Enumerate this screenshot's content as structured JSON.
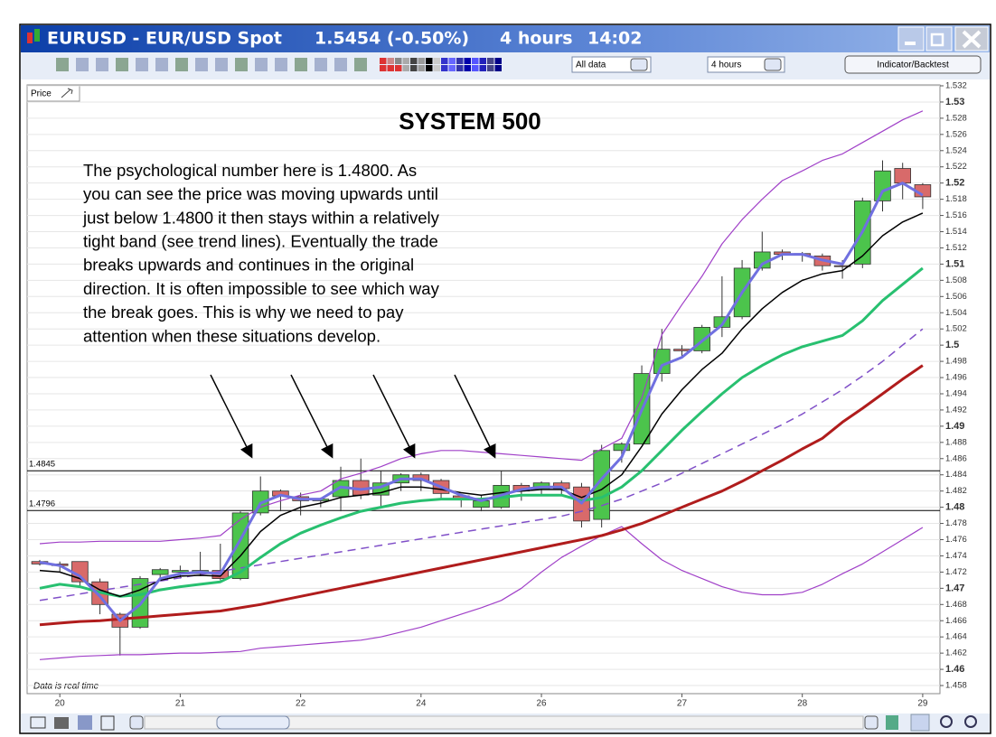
{
  "window": {
    "symbol": "EURUSD - EUR/USD Spot",
    "quote": "1.5454 (-0.50%)",
    "interval": "4 hours",
    "time": "14:02",
    "range_select": "All data",
    "interval_select": "4 hours",
    "button": "Indicator/Backtest",
    "panel_label": "Price",
    "status": "Data is real time"
  },
  "chart_data": {
    "type": "candlestick",
    "title": "SYSTEM 500",
    "annotation": [
      "The psychological number here is 1.4800. As",
      "you can see the price was moving upwards until",
      "just below 1.4800 it then stays within a relatively",
      "tight band (see trend lines). Eventually the trade",
      "breaks upwards and continues in the original",
      "direction. It is often impossible to see which way",
      "the break goes. This is why we need to pay",
      "attention when these situations develop."
    ],
    "up_color": "#4cc44c",
    "down_color": "#d86a6a",
    "open": [
      1.4733,
      1.473,
      1.4733,
      1.4708,
      1.4668,
      1.4652,
      1.4717,
      1.472,
      1.4718,
      1.4722,
      1.4712,
      1.4793,
      1.482,
      1.4813,
      1.4808,
      1.4813,
      1.4833,
      1.4815,
      1.483,
      1.484,
      1.4833,
      1.4814,
      1.48,
      1.48,
      1.4827,
      1.4822,
      1.483,
      1.4825,
      1.4785,
      1.487,
      1.4878,
      1.4965,
      1.4995,
      1.4993,
      1.5022,
      1.5035,
      1.5095,
      1.5115,
      1.5113,
      1.511,
      1.5098,
      1.51,
      1.5178,
      1.5218,
      1.5198
    ],
    "high": [
      1.4735,
      1.4733,
      1.4733,
      1.4712,
      1.467,
      1.4715,
      1.4725,
      1.4728,
      1.4745,
      1.4755,
      1.4795,
      1.4838,
      1.4822,
      1.4818,
      1.4812,
      1.485,
      1.486,
      1.4845,
      1.4842,
      1.4843,
      1.4835,
      1.4815,
      1.4815,
      1.4845,
      1.483,
      1.4832,
      1.4833,
      1.483,
      1.4877,
      1.488,
      1.4975,
      1.502,
      1.5,
      1.5025,
      1.5085,
      1.5105,
      1.514,
      1.5118,
      1.5115,
      1.5113,
      1.5105,
      1.5182,
      1.5228,
      1.5225,
      1.52
    ],
    "low": [
      1.4728,
      1.472,
      1.4703,
      1.4668,
      1.4617,
      1.465,
      1.4712,
      1.4712,
      1.4715,
      1.471,
      1.471,
      1.479,
      1.4795,
      1.479,
      1.48,
      1.4795,
      1.481,
      1.48,
      1.482,
      1.482,
      1.481,
      1.48,
      1.4795,
      1.4798,
      1.4808,
      1.4815,
      1.4815,
      1.4775,
      1.4775,
      1.4855,
      1.4878,
      1.4955,
      1.4985,
      1.499,
      1.501,
      1.5032,
      1.5092,
      1.5105,
      1.5103,
      1.5092,
      1.5082,
      1.5095,
      1.5165,
      1.518,
      1.5168
    ],
    "close": [
      1.473,
      1.4728,
      1.4708,
      1.468,
      1.4652,
      1.4712,
      1.4723,
      1.4722,
      1.4722,
      1.4712,
      1.4793,
      1.482,
      1.4814,
      1.4808,
      1.481,
      1.4833,
      1.4815,
      1.483,
      1.484,
      1.4833,
      1.4817,
      1.481,
      1.4808,
      1.4827,
      1.482,
      1.483,
      1.4823,
      1.4783,
      1.487,
      1.4878,
      1.4965,
      1.4995,
      1.4993,
      1.5022,
      1.5035,
      1.5095,
      1.5115,
      1.5112,
      1.5111,
      1.5098,
      1.5097,
      1.5178,
      1.5215,
      1.52,
      1.5183
    ],
    "series": [
      {
        "color": "#a040c8",
        "width": 1.2,
        "dash": false,
        "values": [
          1.4755,
          1.4757,
          1.4757,
          1.4758,
          1.4758,
          1.4758,
          1.4758,
          1.476,
          1.4762,
          1.4765,
          1.4785,
          1.48,
          1.4808,
          1.4815,
          1.482,
          1.4835,
          1.4842,
          1.485,
          1.486,
          1.4866,
          1.487,
          1.487,
          1.4868,
          1.4866,
          1.4864,
          1.4862,
          1.486,
          1.4858,
          1.4872,
          1.4885,
          1.4935,
          1.5013,
          1.505,
          1.5085,
          1.5125,
          1.5155,
          1.518,
          1.5203,
          1.5215,
          1.5228,
          1.5236,
          1.525,
          1.5264,
          1.5278,
          1.5289
        ]
      },
      {
        "color": "#a040c8",
        "width": 1.2,
        "dash": false,
        "values": [
          1.4612,
          1.4614,
          1.4616,
          1.4617,
          1.4618,
          1.4618,
          1.4619,
          1.462,
          1.462,
          1.4621,
          1.4622,
          1.4626,
          1.4628,
          1.463,
          1.4632,
          1.4634,
          1.4636,
          1.464,
          1.4646,
          1.4652,
          1.466,
          1.4668,
          1.4676,
          1.4685,
          1.47,
          1.472,
          1.4738,
          1.4752,
          1.4765,
          1.4776,
          1.4755,
          1.4735,
          1.4722,
          1.4712,
          1.4702,
          1.4695,
          1.4692,
          1.4692,
          1.4695,
          1.4705,
          1.4718,
          1.473,
          1.4745,
          1.476,
          1.4775
        ]
      },
      {
        "color": "#8050c8",
        "width": 1.5,
        "dash": true,
        "values": [
          1.4685,
          1.4689,
          1.4693,
          1.4697,
          1.4701,
          1.4705,
          1.4709,
          1.4713,
          1.4717,
          1.4721,
          1.4725,
          1.4729,
          1.4733,
          1.4737,
          1.4741,
          1.4745,
          1.4749,
          1.4753,
          1.4757,
          1.4761,
          1.4765,
          1.4769,
          1.4773,
          1.4777,
          1.4781,
          1.4785,
          1.4789,
          1.4795,
          1.4802,
          1.481,
          1.482,
          1.483,
          1.4842,
          1.4854,
          1.4866,
          1.4878,
          1.489,
          1.4902,
          1.4915,
          1.493,
          1.4945,
          1.4962,
          1.498,
          1.5,
          1.502
        ]
      },
      {
        "color": "#b01c1c",
        "width": 3,
        "dash": false,
        "values": [
          1.4655,
          1.4657,
          1.4659,
          1.466,
          1.4662,
          1.4664,
          1.4666,
          1.4668,
          1.467,
          1.4672,
          1.4676,
          1.468,
          1.4685,
          1.469,
          1.4695,
          1.47,
          1.4705,
          1.471,
          1.4715,
          1.472,
          1.4725,
          1.473,
          1.4735,
          1.474,
          1.4745,
          1.475,
          1.4755,
          1.476,
          1.4765,
          1.4772,
          1.478,
          1.479,
          1.48,
          1.481,
          1.482,
          1.4832,
          1.4845,
          1.4858,
          1.4872,
          1.4885,
          1.4905,
          1.4922,
          1.494,
          1.4958,
          1.4975
        ]
      },
      {
        "color": "#28c070",
        "width": 3,
        "dash": false,
        "values": [
          1.47,
          1.4705,
          1.4702,
          1.4695,
          1.469,
          1.4692,
          1.4698,
          1.4702,
          1.4705,
          1.4708,
          1.472,
          1.4738,
          1.4755,
          1.4768,
          1.4778,
          1.4787,
          1.4795,
          1.48,
          1.4805,
          1.4808,
          1.481,
          1.481,
          1.481,
          1.4812,
          1.4815,
          1.4815,
          1.4815,
          1.4808,
          1.4812,
          1.4825,
          1.4845,
          1.487,
          1.4895,
          1.4918,
          1.494,
          1.496,
          1.4975,
          1.4988,
          1.4998,
          1.5005,
          1.5012,
          1.503,
          1.5055,
          1.5075,
          1.5095
        ]
      },
      {
        "color": "#000000",
        "width": 1.5,
        "dash": false,
        "values": [
          1.4722,
          1.472,
          1.4712,
          1.4698,
          1.469,
          1.4698,
          1.471,
          1.4715,
          1.4716,
          1.4715,
          1.474,
          1.477,
          1.479,
          1.48,
          1.4805,
          1.4812,
          1.4815,
          1.4818,
          1.4825,
          1.4825,
          1.4822,
          1.4818,
          1.4815,
          1.4818,
          1.482,
          1.4822,
          1.4822,
          1.4812,
          1.4822,
          1.484,
          1.4875,
          1.4915,
          1.4945,
          1.497,
          1.499,
          1.502,
          1.5045,
          1.5065,
          1.508,
          1.5088,
          1.5092,
          1.511,
          1.5135,
          1.5152,
          1.5163
        ]
      },
      {
        "color": "#7070e0",
        "width": 3,
        "dash": false,
        "values": [
          1.4732,
          1.4728,
          1.4715,
          1.469,
          1.466,
          1.468,
          1.4712,
          1.4718,
          1.472,
          1.4718,
          1.476,
          1.4805,
          1.4815,
          1.481,
          1.481,
          1.4825,
          1.4822,
          1.4825,
          1.4835,
          1.4835,
          1.4825,
          1.4815,
          1.4808,
          1.4815,
          1.4822,
          1.4825,
          1.4825,
          1.4805,
          1.4835,
          1.4862,
          1.492,
          1.4975,
          1.4985,
          1.5005,
          1.5025,
          1.5065,
          1.51,
          1.5112,
          1.5112,
          1.5105,
          1.51,
          1.514,
          1.519,
          1.52,
          1.5185
        ]
      }
    ],
    "hlines": [
      1.4845,
      1.4796
    ],
    "xlim": [
      -0.63,
      44.86
    ],
    "xticks": [
      {
        "value": 1,
        "label": "20"
      },
      {
        "value": 7,
        "label": "21"
      },
      {
        "value": 13,
        "label": "22"
      },
      {
        "value": 19,
        "label": "24"
      },
      {
        "value": 25,
        "label": "26"
      },
      {
        "value": 32,
        "label": "27"
      },
      {
        "value": 38,
        "label": "28"
      },
      {
        "value": 44,
        "label": "29"
      }
    ],
    "ylim": [
      1.457,
      1.532
    ],
    "yticks": [
      1.458,
      1.46,
      1.462,
      1.464,
      1.466,
      1.468,
      1.47,
      1.472,
      1.474,
      1.476,
      1.478,
      1.48,
      1.482,
      1.484,
      1.486,
      1.488,
      1.49,
      1.492,
      1.494,
      1.496,
      1.498,
      1.5,
      1.502,
      1.504,
      1.506,
      1.508,
      1.51,
      1.512,
      1.514,
      1.516,
      1.518,
      1.52,
      1.522,
      1.524,
      1.526,
      1.528,
      1.53,
      1.532
    ],
    "grid": true
  }
}
